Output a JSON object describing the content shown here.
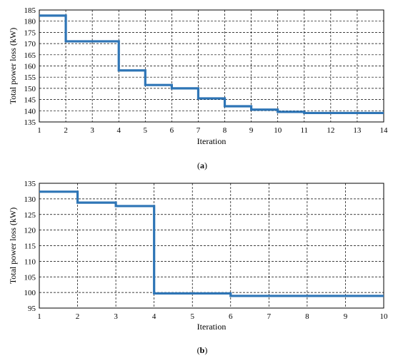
{
  "chart_data": [
    {
      "type": "line",
      "step": true,
      "caption_label": "a",
      "xlabel": "Iteration",
      "ylabel": "Total power loss (kW)",
      "xlim": [
        1,
        14
      ],
      "ylim": [
        135,
        185
      ],
      "x_ticks": [
        "1",
        "2",
        "3",
        "4",
        "5",
        "6",
        "7",
        "8",
        "9",
        "10",
        "11",
        "12",
        "13",
        "14"
      ],
      "y_ticks": [
        "135",
        "140",
        "145",
        "150",
        "155",
        "160",
        "165",
        "170",
        "175",
        "180",
        "185"
      ],
      "grid": true,
      "color": "#2e75b6",
      "x": [
        1,
        2,
        2,
        4,
        4,
        5,
        5,
        6,
        6,
        7,
        7,
        8,
        8,
        9,
        9,
        10,
        10,
        11,
        11,
        14
      ],
      "y": [
        182.5,
        182.5,
        171,
        171,
        158,
        158,
        151.5,
        151.5,
        150,
        150,
        145.5,
        145.5,
        142,
        142,
        140.5,
        140.5,
        139.5,
        139.5,
        139,
        139
      ]
    },
    {
      "type": "line",
      "step": true,
      "caption_label": "b",
      "xlabel": "Iteration",
      "ylabel": "Total power loss (kW)",
      "xlim": [
        1,
        10
      ],
      "ylim": [
        95,
        135
      ],
      "x_ticks": [
        "1",
        "2",
        "3",
        "4",
        "5",
        "6",
        "7",
        "8",
        "9",
        "10"
      ],
      "y_ticks": [
        "95",
        "100",
        "105",
        "110",
        "115",
        "120",
        "125",
        "130",
        "135"
      ],
      "grid": true,
      "color": "#2e75b6",
      "x": [
        1,
        2,
        2,
        3,
        3,
        4,
        4,
        6,
        6,
        10
      ],
      "y": [
        132.3,
        132.3,
        128.8,
        128.8,
        127.7,
        127.7,
        99.7,
        99.7,
        98.9,
        98.9
      ]
    }
  ]
}
